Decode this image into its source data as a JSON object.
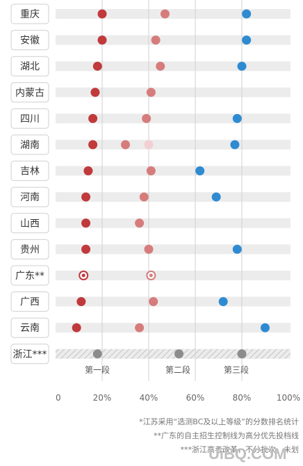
{
  "chart_data": {
    "type": "scatter",
    "title": "",
    "xlabel": "",
    "ylabel": "",
    "xlim": [
      0,
      100
    ],
    "x_ticks": [
      "0",
      "20%",
      "40%",
      "60%",
      "80%",
      "100%"
    ],
    "segment_labels": [
      "第一段",
      "第二段",
      "第三段"
    ],
    "categories": [
      "重庆",
      "安徽",
      "湖北",
      "内蒙古",
      "四川",
      "湖南",
      "吉林",
      "河南",
      "山西",
      "贵州",
      "广东**",
      "广西",
      "云南",
      "浙江***"
    ],
    "series": [
      {
        "color": "#c0393b",
        "values": [
          20,
          20,
          18,
          17,
          16,
          16,
          14,
          13,
          13,
          13,
          12,
          11,
          9,
          18
        ]
      },
      {
        "color": "#d67c7c",
        "values": [
          47,
          43,
          45,
          41,
          39,
          30,
          41,
          38,
          36,
          40,
          41,
          42,
          36,
          53
        ]
      },
      {
        "color": "#2e8bd1",
        "values": [
          82,
          82,
          80,
          null,
          78,
          77,
          62,
          69,
          null,
          78,
          null,
          72,
          90,
          80
        ]
      }
    ],
    "extra_points": [
      {
        "category": "湖南",
        "value": 40,
        "color": "#f2cfd3"
      }
    ],
    "hollow_row": "广东**",
    "hatched_row": "浙江***",
    "hatched_color": "#8c8c8c",
    "grid": true
  },
  "footnotes": [
    "*江苏采用“选测BC及以上等级”的分数排名统计",
    "**广东的自主招生控制线为高分优先投档线",
    "***浙江高考改革，不分批次，未划"
  ],
  "watermark": "UiBQ.COM"
}
